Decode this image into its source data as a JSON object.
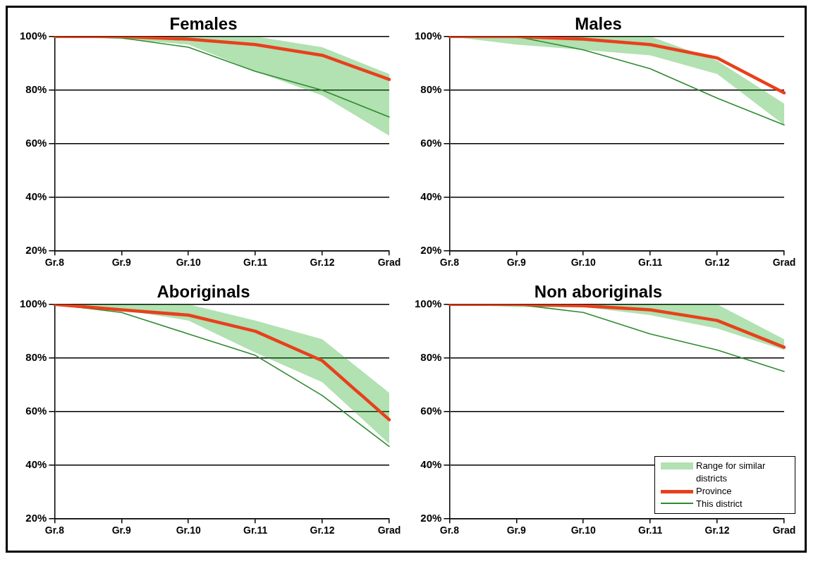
{
  "chart_data": [
    {
      "type": "line",
      "title": "Females",
      "categories": [
        "Gr.8",
        "Gr.9",
        "Gr.10",
        "Gr.11",
        "Gr.12",
        "Grad"
      ],
      "ylim": [
        20,
        100
      ],
      "yticks": [
        {
          "value": 20,
          "label": "20%"
        },
        {
          "value": 40,
          "label": "40%"
        },
        {
          "value": 60,
          "label": "60%"
        },
        {
          "value": 80,
          "label": "80%"
        },
        {
          "value": 100,
          "label": "100%"
        }
      ],
      "grid": "y",
      "legend": false,
      "marker": "none",
      "series": [
        {
          "type": "area",
          "color": "#22a822",
          "values": [
            null,
            null,
            null,
            null,
            null,
            null
          ],
          "lower": [
            100,
            99,
            97,
            87,
            78,
            63
          ],
          "upper": [
            100,
            100,
            100,
            100,
            96,
            86
          ]
        },
        {
          "type": "line",
          "color": "#e8401c",
          "values": [
            100,
            100,
            99,
            97,
            93,
            84
          ]
        },
        {
          "type": "line",
          "color": "#2e8b2e",
          "values": [
            100,
            99.5,
            96,
            87,
            80,
            70
          ]
        }
      ]
    },
    {
      "type": "line",
      "title": "Males",
      "categories": [
        "Gr.8",
        "Gr.9",
        "Gr.10",
        "Gr.11",
        "Gr.12",
        "Grad"
      ],
      "ylim": [
        20,
        100
      ],
      "yticks": [
        {
          "value": 20,
          "label": "20%"
        },
        {
          "value": 40,
          "label": "40%"
        },
        {
          "value": 60,
          "label": "60%"
        },
        {
          "value": 80,
          "label": "80%"
        },
        {
          "value": 100,
          "label": "100%"
        }
      ],
      "grid": "y",
      "legend": false,
      "marker": "none",
      "series": [
        {
          "type": "area",
          "color": "#22a822",
          "values": [
            null,
            null,
            null,
            null,
            null,
            null
          ],
          "lower": [
            100,
            97,
            95,
            93,
            86,
            67
          ],
          "upper": [
            100,
            100,
            100,
            100,
            91,
            75
          ]
        },
        {
          "type": "line",
          "color": "#e8401c",
          "values": [
            100,
            100,
            99,
            97,
            92,
            79
          ]
        },
        {
          "type": "line",
          "color": "#2e8b2e",
          "values": [
            100,
            100,
            95,
            88,
            77,
            67
          ]
        }
      ]
    },
    {
      "type": "line",
      "title": "Aboriginals",
      "categories": [
        "Gr.8",
        "Gr.9",
        "Gr.10",
        "Gr.11",
        "Gr.12",
        "Grad"
      ],
      "ylim": [
        20,
        100
      ],
      "yticks": [
        {
          "value": 20,
          "label": "20%"
        },
        {
          "value": 40,
          "label": "40%"
        },
        {
          "value": 60,
          "label": "60%"
        },
        {
          "value": 80,
          "label": "80%"
        },
        {
          "value": 100,
          "label": "100%"
        }
      ],
      "grid": "y",
      "legend": false,
      "marker": "none",
      "series": [
        {
          "type": "area",
          "color": "#22a822",
          "values": [
            null,
            null,
            null,
            null,
            null,
            null
          ],
          "lower": [
            100,
            98,
            94,
            82,
            71,
            48
          ],
          "upper": [
            100,
            100,
            100,
            94,
            87,
            67
          ]
        },
        {
          "type": "line",
          "color": "#e8401c",
          "values": [
            100,
            98,
            96,
            90,
            79,
            57
          ]
        },
        {
          "type": "line",
          "color": "#2e8b2e",
          "values": [
            100,
            97,
            89,
            81,
            66,
            47
          ]
        }
      ]
    },
    {
      "type": "line",
      "title": "Non aboriginals",
      "categories": [
        "Gr.8",
        "Gr.9",
        "Gr.10",
        "Gr.11",
        "Gr.12",
        "Grad"
      ],
      "ylim": [
        20,
        100
      ],
      "yticks": [
        {
          "value": 20,
          "label": "20%"
        },
        {
          "value": 40,
          "label": "40%"
        },
        {
          "value": 60,
          "label": "60%"
        },
        {
          "value": 80,
          "label": "80%"
        },
        {
          "value": 100,
          "label": "100%"
        }
      ],
      "grid": "y",
      "legend": "bottom right",
      "marker": "none",
      "series": [
        {
          "type": "area",
          "name": "Range for similar districts",
          "color": "#22a822",
          "values": [
            null,
            null,
            null,
            null,
            null,
            null
          ],
          "lower": [
            100,
            99,
            99,
            96,
            91,
            83
          ],
          "upper": [
            100,
            100,
            100,
            100,
            100,
            87
          ]
        },
        {
          "type": "line",
          "name": "Province",
          "color": "#e8401c",
          "values": [
            100,
            100,
            99.5,
            98,
            94,
            84
          ]
        },
        {
          "type": "line",
          "name": "This district",
          "color": "#2e8b2e",
          "values": [
            100,
            100,
            97,
            89,
            83,
            75
          ]
        }
      ]
    }
  ]
}
